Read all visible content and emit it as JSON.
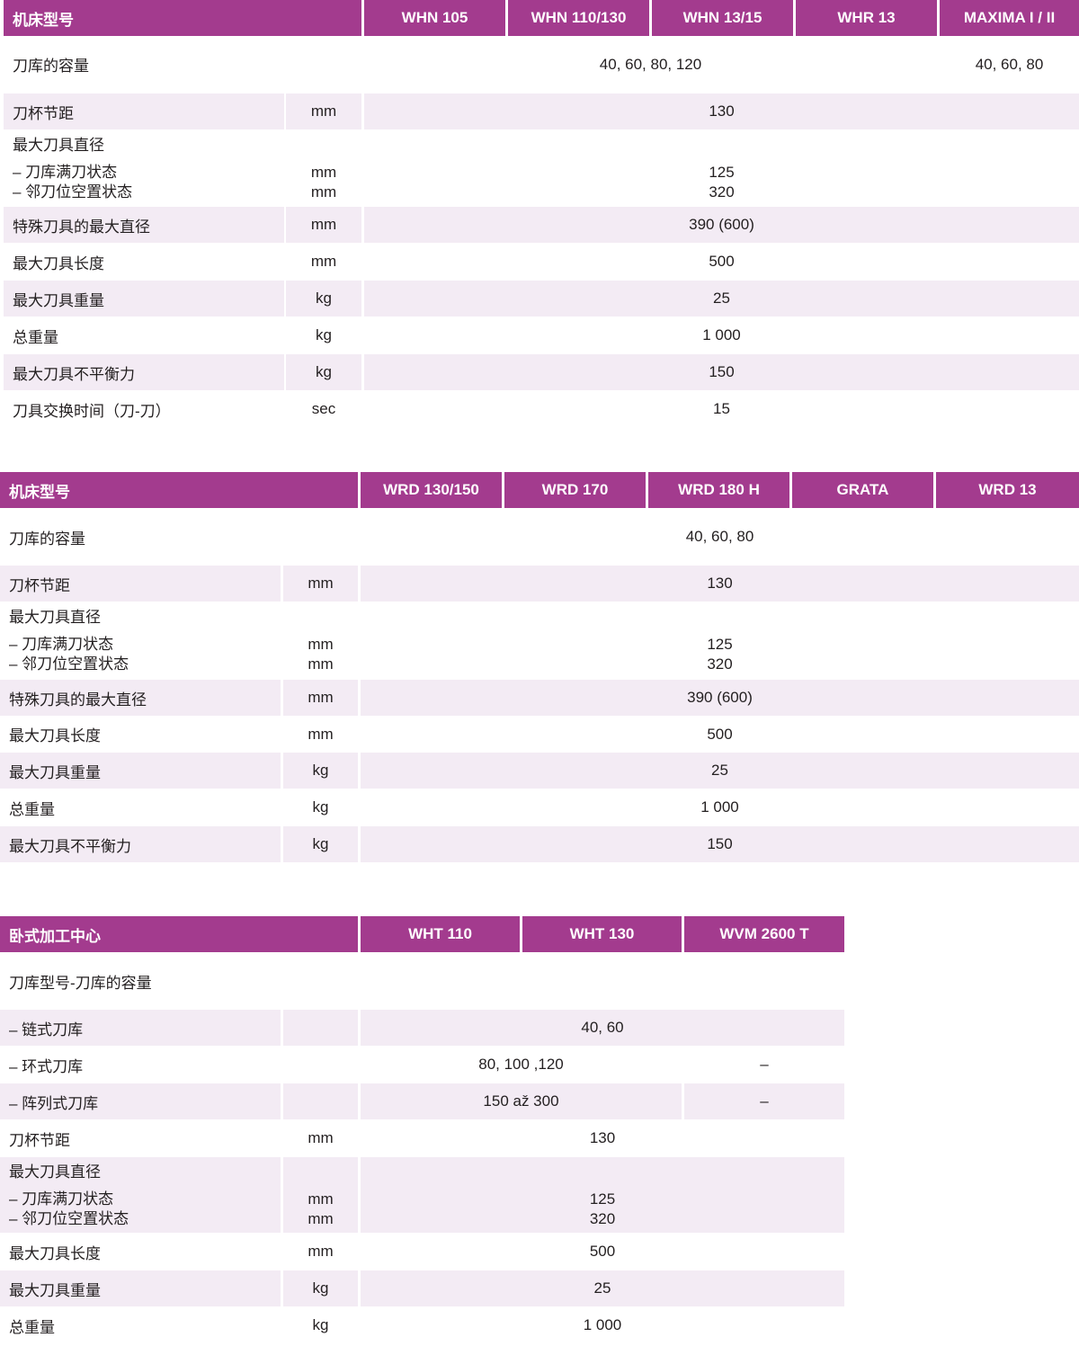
{
  "colors": {
    "header": "#a33b8e",
    "stripe": "#f3ebf4"
  },
  "tables": [
    {
      "header": {
        "title": "机床型号",
        "models": [
          "WHN 105",
          "WHN 110/130",
          "WHN 13/15",
          "WHR 13",
          "MAXIMA I / II"
        ]
      },
      "rows": [
        {
          "label": "刀库的容量",
          "values": [
            "40, 60, 80, 120",
            "40, 60, 80"
          ]
        },
        {
          "label": "刀杯节距",
          "unit": "mm",
          "values": [
            "130"
          ]
        },
        {
          "label": "最大刀具直径",
          "sub": [
            "–  刀库满刀状态",
            "–  邻刀位空置状态"
          ],
          "units": [
            "mm",
            "mm"
          ],
          "values": [
            [
              "125",
              "320"
            ]
          ]
        },
        {
          "label": "特殊刀具的最大直径",
          "unit": "mm",
          "values": [
            "390 (600)"
          ]
        },
        {
          "label": "最大刀具长度",
          "unit": "mm",
          "values": [
            "500"
          ]
        },
        {
          "label": "最大刀具重量",
          "unit": "kg",
          "values": [
            "25"
          ]
        },
        {
          "label": "总重量",
          "unit": "kg",
          "values": [
            "1 000"
          ]
        },
        {
          "label": "最大刀具不平衡力",
          "unit": "kg",
          "values": [
            "150"
          ]
        },
        {
          "label": "刀具交换时间（刀-刀）",
          "unit": "sec",
          "values": [
            "15"
          ]
        }
      ]
    },
    {
      "header": {
        "title": "机床型号",
        "models": [
          "WRD 130/150",
          "WRD 170",
          "WRD 180 H",
          "GRATA",
          "WRD 13"
        ]
      },
      "rows": [
        {
          "label": "刀库的容量",
          "values": [
            "40, 60, 80"
          ]
        },
        {
          "label": "刀杯节距",
          "unit": "mm",
          "values": [
            "130"
          ]
        },
        {
          "label": "最大刀具直径",
          "sub": [
            "–  刀库满刀状态",
            "–  邻刀位空置状态"
          ],
          "units": [
            "mm",
            "mm"
          ],
          "values": [
            [
              "125",
              "320"
            ]
          ]
        },
        {
          "label": "特殊刀具的最大直径",
          "unit": "mm",
          "values": [
            "390 (600)"
          ]
        },
        {
          "label": "最大刀具长度",
          "unit": "mm",
          "values": [
            "500"
          ]
        },
        {
          "label": "最大刀具重量",
          "unit": "kg",
          "values": [
            "25"
          ]
        },
        {
          "label": "总重量",
          "unit": "kg",
          "values": [
            "1 000"
          ]
        },
        {
          "label": "最大刀具不平衡力",
          "unit": "kg",
          "values": [
            "150"
          ]
        }
      ]
    },
    {
      "header": {
        "title": "卧式加工中心",
        "models": [
          "WHT 110",
          "WHT 130",
          "WVM 2600 T"
        ]
      },
      "rows": [
        {
          "label": "刀库型号-刀库的容量",
          "values": []
        },
        {
          "label": "– 链式刀库",
          "values": [
            "40, 60"
          ]
        },
        {
          "label": "– 环式刀库",
          "values": [
            "80, 100 ,120",
            "–"
          ]
        },
        {
          "label": "– 阵列式刀库",
          "values": [
            "150 až 300",
            "–"
          ]
        },
        {
          "label": "刀杯节距",
          "unit": "mm",
          "values": [
            "130"
          ]
        },
        {
          "label": "最大刀具直径",
          "sub": [
            "– 刀库满刀状态",
            "– 邻刀位空置状态"
          ],
          "units": [
            "mm",
            "mm"
          ],
          "values": [
            [
              "125",
              "320"
            ]
          ]
        },
        {
          "label": "最大刀具长度",
          "unit": "mm",
          "values": [
            "500"
          ]
        },
        {
          "label": "最大刀具重量",
          "unit": "kg",
          "values": [
            "25"
          ]
        },
        {
          "label": "总重量",
          "unit": "kg",
          "values": [
            "1 000"
          ]
        }
      ]
    }
  ]
}
